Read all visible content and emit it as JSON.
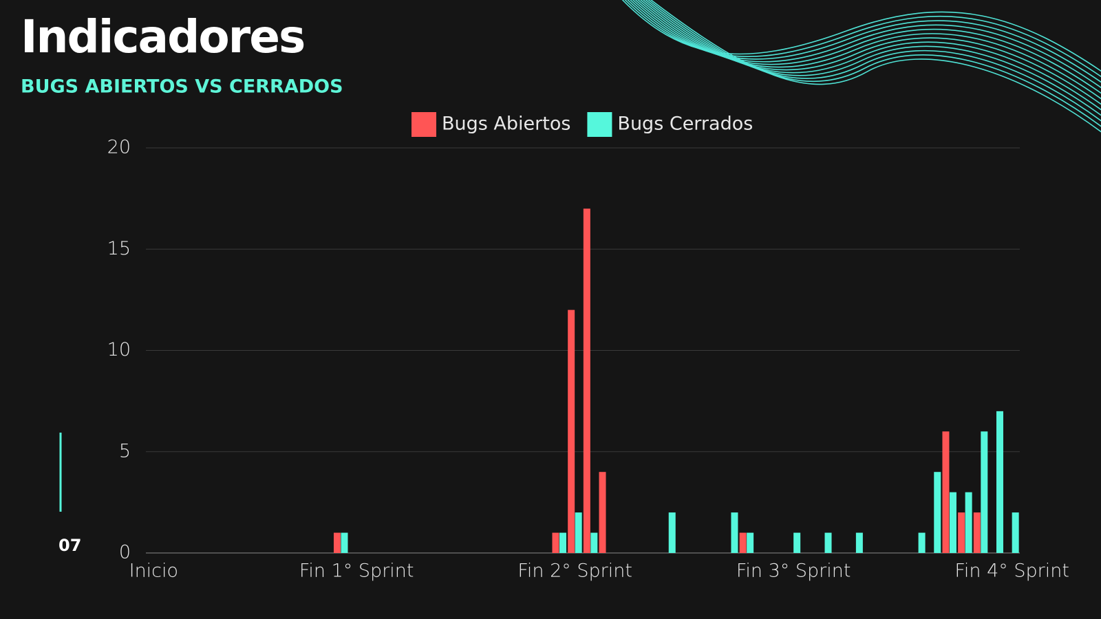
{
  "chart_data": {
    "type": "bar",
    "title": "Indicadores",
    "subtitle": "BUGS ABIERTOS VS CERRADOS",
    "categories": [
      "Inicio",
      null,
      null,
      null,
      null,
      null,
      null,
      null,
      null,
      null,
      null,
      null,
      null,
      "Fin 1° Sprint",
      null,
      null,
      null,
      null,
      null,
      null,
      null,
      null,
      null,
      null,
      null,
      null,
      null,
      "Fin 2° Sprint",
      null,
      null,
      null,
      null,
      null,
      null,
      null,
      null,
      null,
      null,
      null,
      null,
      null,
      "Fin 3° Sprint",
      null,
      null,
      null,
      null,
      null,
      null,
      null,
      null,
      null,
      null,
      null,
      null,
      null,
      "Fin 4° Sprint"
    ],
    "series": [
      {
        "name": "Bugs Abiertos",
        "color": "#ff5555",
        "values": [
          0,
          0,
          0,
          0,
          0,
          0,
          0,
          0,
          0,
          0,
          0,
          0,
          1,
          0,
          0,
          0,
          0,
          0,
          0,
          0,
          0,
          0,
          0,
          0,
          0,
          0,
          1,
          12,
          17,
          4,
          0,
          0,
          0,
          0,
          0,
          0,
          0,
          0,
          1,
          0,
          0,
          0,
          0,
          0,
          0,
          0,
          0,
          0,
          0,
          0,
          0,
          6,
          2,
          2,
          0,
          0
        ]
      },
      {
        "name": "Bugs Cerrados",
        "color": "#55f7dc",
        "values": [
          0,
          0,
          0,
          0,
          0,
          0,
          0,
          0,
          0,
          0,
          0,
          0,
          1,
          0,
          0,
          0,
          0,
          0,
          0,
          0,
          0,
          0,
          0,
          0,
          0,
          0,
          1,
          2,
          1,
          0,
          0,
          0,
          0,
          2,
          0,
          0,
          0,
          2,
          1,
          0,
          0,
          1,
          0,
          1,
          0,
          1,
          0,
          0,
          0,
          1,
          4,
          3,
          3,
          6,
          7,
          2
        ]
      }
    ],
    "ylim": [
      0,
      20
    ],
    "yticks": [
      0,
      5,
      10,
      15,
      20
    ],
    "grid": true,
    "legend": "top"
  },
  "page_number": "07"
}
